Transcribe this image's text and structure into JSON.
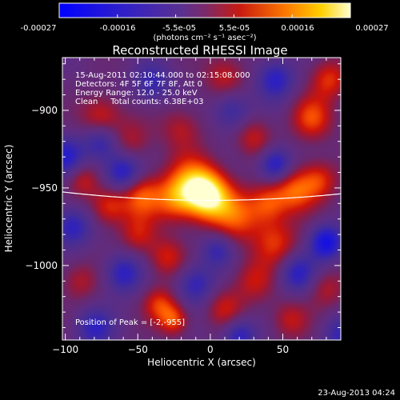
{
  "colorbar": {
    "ticks": [
      "-0.00027",
      "-0.00016",
      "-5.5e-05",
      "5.5e-05",
      "0.00016",
      "0.00027"
    ],
    "unit_label": "(photons cm⁻² s⁻¹ asec⁻²)"
  },
  "footer": {
    "date": "23-Aug-2013 04:24"
  },
  "chart_data": {
    "type": "heatmap",
    "title": "Reconstructed RHESSI Image",
    "xlabel": "Heliocentric X (arcsec)",
    "ylabel": "Heliocentric Y (arcsec)",
    "xlim": [
      -102,
      90
    ],
    "ylim": [
      -1048,
      -866
    ],
    "xticks": [
      -100,
      -50,
      0,
      50
    ],
    "yticks": [
      -900,
      -950,
      -1000
    ],
    "color_range": [
      -0.00027,
      0.00027
    ],
    "annotations": [
      "15-Aug-2011 02:10:44.000 to 02:15:08.000",
      "Detectors: 4F 5F 6F 7F 8F, Att 0",
      "Energy Range: 12.0 - 25.0 keV",
      "Clean     Total counts: 6.38E+03"
    ],
    "peak_label": "Position of Peak = [-2,-955]",
    "peak": [
      -2,
      -955
    ],
    "sources": [
      {
        "x": -2,
        "y": -955,
        "amp": 1.0,
        "s": 11
      },
      {
        "x": -14,
        "y": -946,
        "amp": 0.55,
        "s": 12
      },
      {
        "x": -25,
        "y": -958,
        "amp": 0.45,
        "s": 10
      },
      {
        "x": 18,
        "y": -968,
        "amp": 0.5,
        "s": 12
      },
      {
        "x": 40,
        "y": -960,
        "amp": 0.45,
        "s": 9
      },
      {
        "x": 58,
        "y": -952,
        "amp": 0.55,
        "s": 10
      },
      {
        "x": 75,
        "y": -945,
        "amp": 0.45,
        "s": 9
      },
      {
        "x": 45,
        "y": -985,
        "amp": 0.45,
        "s": 11
      },
      {
        "x": 30,
        "y": -1010,
        "amp": 0.35,
        "s": 10
      },
      {
        "x": -48,
        "y": -955,
        "amp": 0.55,
        "s": 10
      },
      {
        "x": -70,
        "y": -962,
        "amp": 0.45,
        "s": 9
      },
      {
        "x": -88,
        "y": -945,
        "amp": 0.35,
        "s": 8
      },
      {
        "x": -50,
        "y": -980,
        "amp": 0.35,
        "s": 9
      },
      {
        "x": -30,
        "y": -995,
        "amp": 0.4,
        "s": 9
      },
      {
        "x": -75,
        "y": -905,
        "amp": 0.45,
        "s": 10
      },
      {
        "x": -55,
        "y": -920,
        "amp": 0.3,
        "s": 10
      },
      {
        "x": -20,
        "y": -912,
        "amp": 0.3,
        "s": 10
      },
      {
        "x": 30,
        "y": -918,
        "amp": 0.35,
        "s": 9
      },
      {
        "x": 70,
        "y": -905,
        "amp": 0.5,
        "s": 10
      },
      {
        "x": 82,
        "y": -880,
        "amp": 0.45,
        "s": 9
      },
      {
        "x": 10,
        "y": -878,
        "amp": 0.35,
        "s": 10
      },
      {
        "x": -35,
        "y": -1025,
        "amp": 0.45,
        "s": 8
      },
      {
        "x": -25,
        "y": -1035,
        "amp": 0.5,
        "s": 7
      },
      {
        "x": 10,
        "y": -1028,
        "amp": 0.35,
        "s": 9
      },
      {
        "x": 55,
        "y": -1035,
        "amp": 0.35,
        "s": 9
      },
      {
        "x": 80,
        "y": -1015,
        "amp": 0.3,
        "s": 9
      },
      {
        "x": -90,
        "y": -1010,
        "amp": 0.3,
        "s": 9
      },
      {
        "x": -60,
        "y": -940,
        "amp": -0.6,
        "s": 9
      },
      {
        "x": -75,
        "y": -920,
        "amp": -0.5,
        "s": 9
      },
      {
        "x": -100,
        "y": -930,
        "amp": -0.5,
        "s": 9
      },
      {
        "x": -95,
        "y": -975,
        "amp": -0.5,
        "s": 9
      },
      {
        "x": -60,
        "y": -1005,
        "amp": -0.5,
        "s": 9
      },
      {
        "x": -80,
        "y": -1040,
        "amp": -0.45,
        "s": 9
      },
      {
        "x": -10,
        "y": -1012,
        "amp": -0.45,
        "s": 9
      },
      {
        "x": 5,
        "y": -990,
        "amp": -0.4,
        "s": 8
      },
      {
        "x": 60,
        "y": -1005,
        "amp": -0.5,
        "s": 9
      },
      {
        "x": 80,
        "y": -985,
        "amp": -0.7,
        "s": 8
      },
      {
        "x": 45,
        "y": -935,
        "amp": -0.6,
        "s": 8
      },
      {
        "x": 15,
        "y": -900,
        "amp": -0.4,
        "s": 9
      },
      {
        "x": 45,
        "y": -880,
        "amp": -0.5,
        "s": 9
      },
      {
        "x": -40,
        "y": -882,
        "amp": -0.4,
        "s": 9
      },
      {
        "x": 20,
        "y": -1045,
        "amp": -0.5,
        "s": 8
      },
      {
        "x": 90,
        "y": -1045,
        "amp": -0.4,
        "s": 9
      }
    ],
    "background_level": -0.08,
    "limb_arc": "solar limb (white curve)"
  }
}
